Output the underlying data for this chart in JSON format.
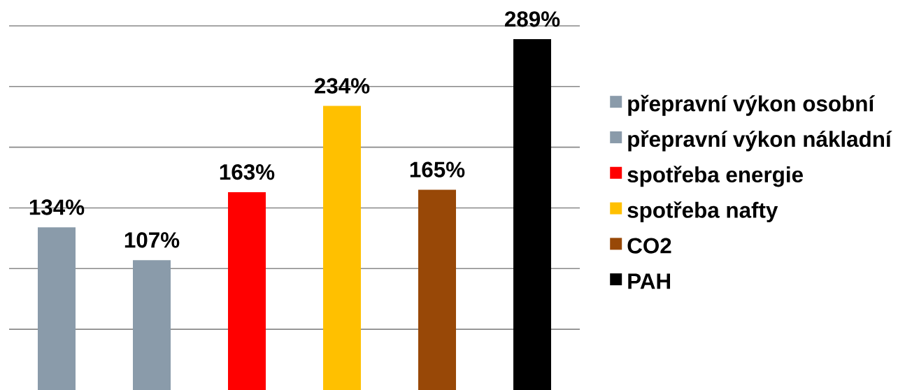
{
  "chart_data": {
    "type": "bar",
    "stacked": true,
    "categories": [
      null,
      null,
      null,
      null,
      null,
      null
    ],
    "series": [
      {
        "name": "přepravní výkon osobní",
        "color": "#8a9baa",
        "values": [
          134,
          null,
          null,
          null,
          null,
          null
        ],
        "value_labels": [
          "134%",
          null,
          null,
          null,
          null,
          null
        ]
      },
      {
        "name": "přepravní výkon nákladní",
        "color": "#8a9baa",
        "values": [
          null,
          107,
          null,
          null,
          null,
          null
        ],
        "value_labels": [
          null,
          "107%",
          null,
          null,
          null,
          null
        ]
      },
      {
        "name": "spotřeba energie",
        "color": "#ff0000",
        "values": [
          null,
          null,
          163,
          null,
          null,
          null
        ],
        "value_labels": [
          null,
          null,
          "163%",
          null,
          null,
          null
        ]
      },
      {
        "name": "spotřeba nafty",
        "color": "#ffc000",
        "values": [
          null,
          null,
          null,
          234,
          null,
          null
        ],
        "value_labels": [
          null,
          null,
          null,
          "234%",
          null,
          null
        ]
      },
      {
        "name": "CO2",
        "color": "#984807",
        "values": [
          null,
          null,
          null,
          null,
          165,
          null
        ],
        "value_labels": [
          null,
          null,
          null,
          null,
          "165%",
          null
        ]
      },
      {
        "name": "PAH",
        "color": "#000000",
        "values": [
          null,
          null,
          null,
          null,
          null,
          289
        ],
        "value_labels": [
          null,
          null,
          null,
          null,
          null,
          "289%"
        ]
      }
    ],
    "ylim": [
      0,
      300
    ],
    "yticks": [
      50,
      100,
      150,
      200,
      250,
      300
    ],
    "grid": "y",
    "legend": "right",
    "tick_labels": false
  }
}
